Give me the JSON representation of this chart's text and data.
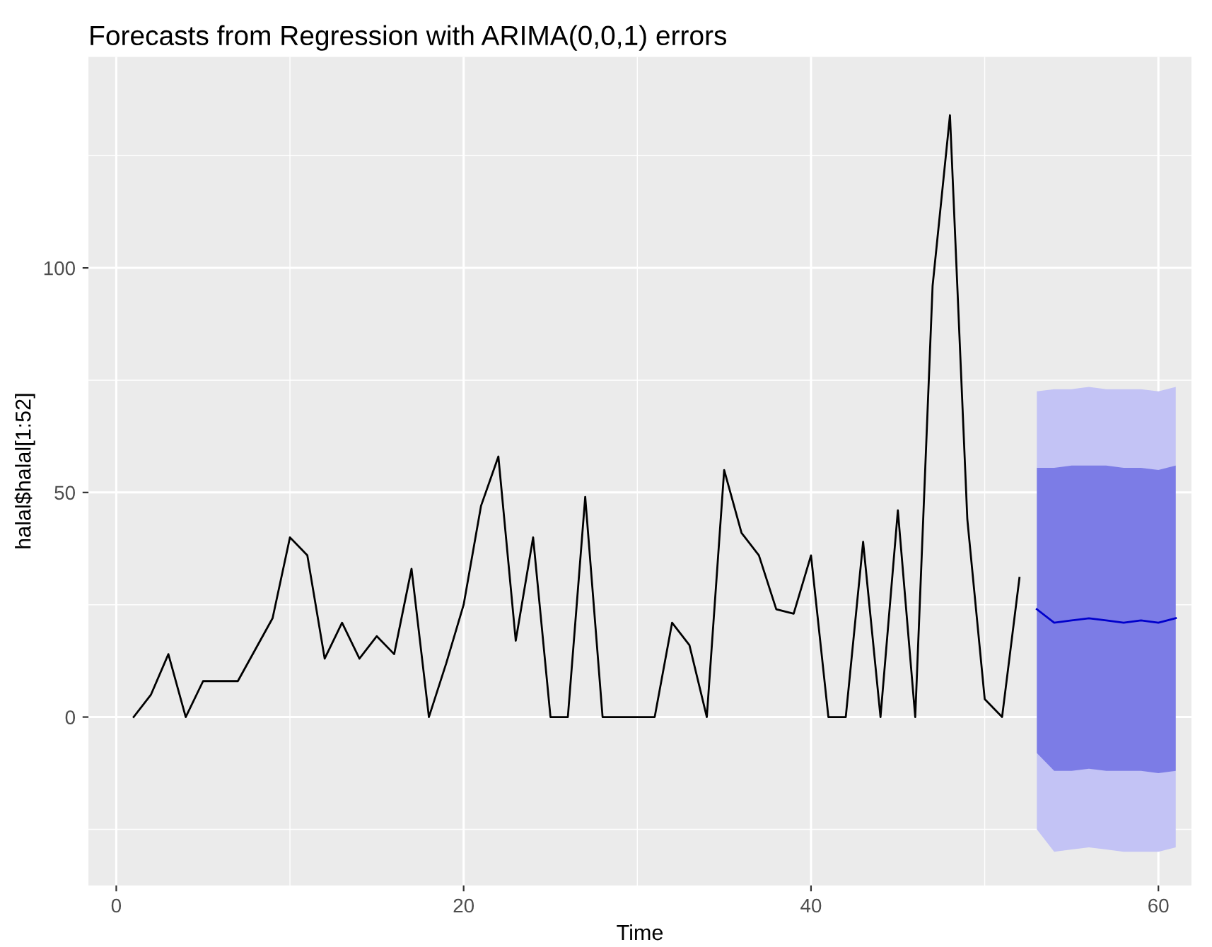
{
  "chart_data": {
    "type": "line",
    "title": "Forecasts from Regression with ARIMA(0,0,1) errors",
    "xlabel": "Time",
    "ylabel": "halal$halal[1:52]",
    "series": [
      {
        "color": "#000000",
        "x": [
          1,
          2,
          3,
          4,
          5,
          6,
          7,
          8,
          9,
          10,
          11,
          12,
          13,
          14,
          15,
          16,
          17,
          18,
          19,
          20,
          21,
          22,
          23,
          24,
          25,
          26,
          27,
          28,
          29,
          30,
          31,
          32,
          33,
          34,
          35,
          36,
          37,
          38,
          39,
          40,
          41,
          42,
          43,
          44,
          45,
          46,
          47,
          48,
          49,
          50,
          51,
          52
        ],
        "values": [
          0,
          5,
          14,
          0,
          8,
          8,
          8,
          15,
          22,
          40,
          36,
          13,
          21,
          13,
          18,
          14,
          33,
          0,
          12,
          25,
          47,
          58,
          17,
          40,
          0,
          0,
          49,
          0,
          0,
          0,
          0,
          21,
          16,
          0,
          55,
          41,
          36,
          24,
          23,
          36,
          0,
          0,
          39,
          0,
          46,
          0,
          96,
          134,
          44,
          4,
          0,
          31
        ]
      },
      {
        "color": "#c3c3f5",
        "x": [
          53,
          54,
          55,
          56,
          57,
          58,
          59,
          60,
          61
        ],
        "values": [
          null,
          null,
          null,
          null,
          null,
          null,
          null,
          null,
          null
        ],
        "lower": [
          -25,
          -30,
          -29.5,
          -29,
          -29.5,
          -30,
          -30,
          -30,
          -29
        ],
        "upper": [
          72.5,
          73,
          73,
          73.5,
          73,
          73,
          73,
          72.5,
          73.5
        ]
      },
      {
        "color": "#0000cc",
        "x": [
          53,
          54,
          55,
          56,
          57,
          58,
          59,
          60,
          61
        ],
        "values": [
          24,
          21,
          21.5,
          22,
          21.5,
          21,
          21.5,
          21,
          22
        ],
        "lower": [
          -8,
          -12,
          -12,
          -11.5,
          -12,
          -12,
          -12,
          -12.5,
          -12
        ],
        "upper": [
          55.5,
          55.5,
          56,
          56,
          56,
          55.5,
          55.5,
          55,
          56
        ]
      }
    ],
    "xlim": [
      -1.6,
      61.9
    ],
    "ylim": [
      -37.5,
      147
    ],
    "xticks": [
      0,
      20,
      40,
      60
    ],
    "yticks": [
      0,
      50,
      100
    ],
    "grid": true
  }
}
